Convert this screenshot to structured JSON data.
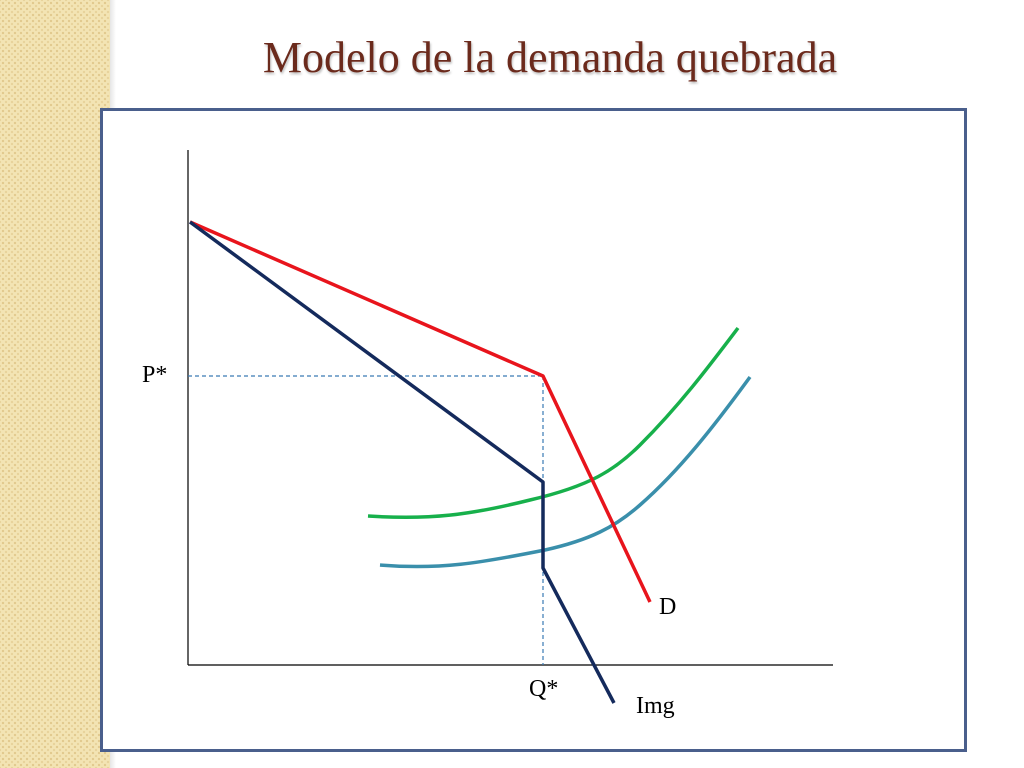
{
  "title": "Modelo de la demanda quebrada",
  "labels": {
    "p_star": "P*",
    "q_star": "Q*",
    "demand": "D",
    "img": "Img"
  },
  "colors": {
    "title": "#6b2a1c",
    "demand": "#e8141c",
    "img": "#142a5c",
    "cost_upper": "#17b04b",
    "cost_lower": "#3a8fab",
    "guides": "#3a7ab5",
    "frame": "#4a5f8c"
  }
}
